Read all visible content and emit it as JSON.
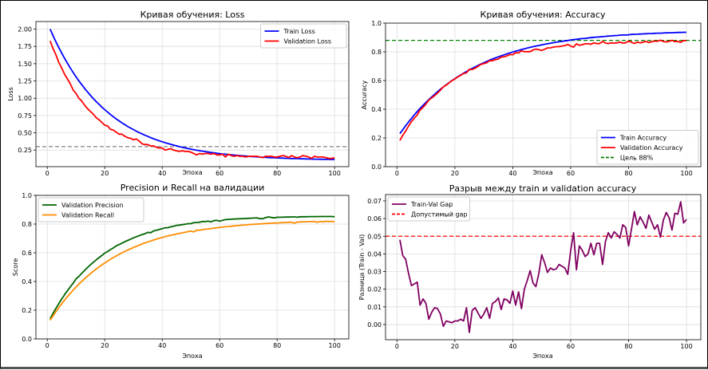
{
  "chart_data": [
    {
      "type": "line",
      "title": "Кривая обучения: Loss",
      "xlabel": "Эпоха",
      "ylabel": "Loss",
      "xlim": [
        -3.95,
        104.95
      ],
      "ylim": [
        0.01,
        2.11
      ],
      "xticks": [
        0,
        20,
        40,
        60,
        80,
        100
      ],
      "yticks": [
        "0.25",
        "0.50",
        "0.75",
        "1.00",
        "1.25",
        "1.50",
        "1.75",
        "2.00"
      ],
      "grid": true,
      "legend": "top-right",
      "hline": {
        "y": 0.3,
        "color": "#808080",
        "style": "dashed"
      },
      "series": [
        {
          "name": "Train Loss",
          "color": "#0000ff",
          "values": [
            2.0,
            1.907,
            1.819,
            1.735,
            1.656,
            1.58,
            1.508,
            1.439,
            1.374,
            1.311,
            1.252,
            1.196,
            1.143,
            1.092,
            1.043,
            0.997,
            0.954,
            0.912,
            0.872,
            0.835,
            0.799,
            0.765,
            0.732,
            0.701,
            0.672,
            0.644,
            0.618,
            0.592,
            0.568,
            0.546,
            0.524,
            0.503,
            0.484,
            0.465,
            0.447,
            0.43,
            0.414,
            0.399,
            0.384,
            0.37,
            0.357,
            0.345,
            0.333,
            0.321,
            0.311,
            0.3,
            0.29,
            0.281,
            0.272,
            0.264,
            0.256,
            0.248,
            0.241,
            0.234,
            0.228,
            0.221,
            0.215,
            0.21,
            0.204,
            0.199,
            0.194,
            0.19,
            0.185,
            0.181,
            0.177,
            0.174,
            0.17,
            0.167,
            0.163,
            0.16,
            0.157,
            0.154,
            0.152,
            0.149,
            0.147,
            0.145,
            0.142,
            0.14,
            0.138,
            0.137,
            0.135,
            0.133,
            0.131,
            0.13,
            0.128,
            0.127,
            0.126,
            0.124,
            0.123,
            0.122,
            0.121,
            0.12,
            0.119,
            0.118,
            0.117,
            0.116,
            0.115,
            0.115,
            0.114,
            0.113
          ]
        },
        {
          "name": "Validation Loss",
          "color": "#ff0000",
          "values": [
            1.83,
            1.72,
            1.63,
            1.52,
            1.44,
            1.35,
            1.28,
            1.21,
            1.12,
            1.07,
            1.0,
            0.96,
            0.9,
            0.85,
            0.81,
            0.77,
            0.72,
            0.69,
            0.65,
            0.61,
            0.6,
            0.55,
            0.54,
            0.51,
            0.48,
            0.48,
            0.45,
            0.43,
            0.42,
            0.4,
            0.41,
            0.38,
            0.34,
            0.33,
            0.33,
            0.31,
            0.31,
            0.29,
            0.28,
            0.28,
            0.25,
            0.26,
            0.27,
            0.25,
            0.24,
            0.23,
            0.24,
            0.23,
            0.23,
            0.22,
            0.2,
            0.18,
            0.2,
            0.19,
            0.2,
            0.2,
            0.19,
            0.2,
            0.18,
            0.18,
            0.19,
            0.15,
            0.19,
            0.17,
            0.16,
            0.17,
            0.16,
            0.16,
            0.15,
            0.16,
            0.16,
            0.16,
            0.16,
            0.15,
            0.14,
            0.16,
            0.16,
            0.16,
            0.15,
            0.15,
            0.16,
            0.17,
            0.16,
            0.14,
            0.17,
            0.15,
            0.14,
            0.15,
            0.17,
            0.16,
            0.15,
            0.13,
            0.16,
            0.15,
            0.15,
            0.15,
            0.14,
            0.13,
            0.13,
            0.14
          ]
        }
      ]
    },
    {
      "type": "line",
      "title": "Кривая обучения: Accuracy",
      "xlabel": "Эпоха",
      "ylabel": "Accuracy",
      "xlim": [
        -3.95,
        104.95
      ],
      "ylim": [
        0.0,
        1.0
      ],
      "xticks": [
        0,
        20,
        40,
        60,
        80,
        100
      ],
      "yticks": [
        "0.0",
        "0.2",
        "0.4",
        "0.6",
        "0.8",
        "1.0"
      ],
      "grid": true,
      "legend": "bottom-right",
      "hline": {
        "y": 0.88,
        "color": "#008000",
        "style": "dashed",
        "name": "Цель 88%"
      },
      "series": [
        {
          "name": "Train Accuracy",
          "color": "#0000ff",
          "values": [
            0.23,
            0.258,
            0.285,
            0.311,
            0.336,
            0.361,
            0.384,
            0.406,
            0.427,
            0.448,
            0.467,
            0.486,
            0.504,
            0.522,
            0.539,
            0.555,
            0.57,
            0.585,
            0.6,
            0.613,
            0.627,
            0.639,
            0.651,
            0.663,
            0.674,
            0.685,
            0.695,
            0.705,
            0.715,
            0.724,
            0.733,
            0.742,
            0.75,
            0.758,
            0.765,
            0.772,
            0.779,
            0.786,
            0.793,
            0.799,
            0.805,
            0.81,
            0.816,
            0.821,
            0.826,
            0.831,
            0.836,
            0.84,
            0.844,
            0.849,
            0.853,
            0.856,
            0.86,
            0.864,
            0.867,
            0.87,
            0.873,
            0.876,
            0.879,
            0.882,
            0.885,
            0.887,
            0.89,
            0.892,
            0.894,
            0.896,
            0.899,
            0.901,
            0.903,
            0.904,
            0.906,
            0.908,
            0.91,
            0.911,
            0.913,
            0.914,
            0.916,
            0.917,
            0.918,
            0.919,
            0.921,
            0.922,
            0.923,
            0.924,
            0.925,
            0.926,
            0.927,
            0.928,
            0.929,
            0.93,
            0.93,
            0.931,
            0.932,
            0.933,
            0.933,
            0.934,
            0.935,
            0.935,
            0.936,
            0.936
          ]
        },
        {
          "name": "Validation Accuracy",
          "color": "#ff0000",
          "values": [
            0.182,
            0.219,
            0.248,
            0.282,
            0.314,
            0.338,
            0.36,
            0.395,
            0.413,
            0.436,
            0.464,
            0.479,
            0.495,
            0.513,
            0.533,
            0.556,
            0.568,
            0.584,
            0.599,
            0.611,
            0.625,
            0.636,
            0.649,
            0.654,
            0.679,
            0.677,
            0.686,
            0.699,
            0.712,
            0.718,
            0.724,
            0.739,
            0.738,
            0.745,
            0.75,
            0.764,
            0.765,
            0.772,
            0.781,
            0.78,
            0.794,
            0.792,
            0.807,
            0.801,
            0.801,
            0.801,
            0.813,
            0.819,
            0.815,
            0.81,
            0.818,
            0.827,
            0.828,
            0.833,
            0.836,
            0.836,
            0.84,
            0.844,
            0.851,
            0.84,
            0.833,
            0.856,
            0.846,
            0.85,
            0.856,
            0.856,
            0.853,
            0.862,
            0.857,
            0.858,
            0.872,
            0.861,
            0.858,
            0.862,
            0.861,
            0.863,
            0.867,
            0.861,
            0.863,
            0.875,
            0.867,
            0.858,
            0.867,
            0.863,
            0.867,
            0.872,
            0.865,
            0.87,
            0.875,
            0.874,
            0.881,
            0.872,
            0.869,
            0.873,
            0.88,
            0.871,
            0.873,
            0.866,
            0.879,
            0.877
          ]
        }
      ]
    },
    {
      "type": "line",
      "title": "Precision и Recall на валидации",
      "xlabel": "Эпоха",
      "ylabel": "Score",
      "xlim": [
        -3.95,
        104.95
      ],
      "ylim": [
        0.0,
        1.0
      ],
      "xticks": [
        0,
        20,
        40,
        60,
        80,
        100
      ],
      "yticks": [
        "0.0",
        "0.2",
        "0.4",
        "0.6",
        "0.8",
        "1.0"
      ],
      "grid": true,
      "legend": "top-left",
      "series": [
        {
          "name": "Validation Precision",
          "color": "#006400",
          "values": [
            0.14,
            0.177,
            0.212,
            0.245,
            0.277,
            0.307,
            0.335,
            0.362,
            0.388,
            0.418,
            0.435,
            0.457,
            0.477,
            0.497,
            0.516,
            0.533,
            0.55,
            0.566,
            0.581,
            0.598,
            0.609,
            0.622,
            0.634,
            0.648,
            0.657,
            0.667,
            0.677,
            0.686,
            0.695,
            0.704,
            0.712,
            0.719,
            0.727,
            0.733,
            0.742,
            0.74,
            0.752,
            0.757,
            0.763,
            0.768,
            0.774,
            0.775,
            0.781,
            0.785,
            0.791,
            0.793,
            0.796,
            0.799,
            0.803,
            0.803,
            0.81,
            0.811,
            0.813,
            0.818,
            0.818,
            0.82,
            0.816,
            0.824,
            0.826,
            0.82,
            0.826,
            0.831,
            0.832,
            0.834,
            0.835,
            0.836,
            0.837,
            0.838,
            0.839,
            0.84,
            0.841,
            0.842,
            0.843,
            0.838,
            0.837,
            0.845,
            0.85,
            0.846,
            0.843,
            0.847,
            0.848,
            0.848,
            0.849,
            0.849,
            0.85,
            0.85,
            0.848,
            0.851,
            0.851,
            0.851,
            0.852,
            0.852,
            0.852,
            0.852,
            0.853,
            0.853,
            0.853,
            0.853,
            0.853,
            0.851
          ]
        },
        {
          "name": "Validation Recall",
          "color": "#ff8c00",
          "values": [
            0.13,
            0.16,
            0.19,
            0.217,
            0.244,
            0.27,
            0.294,
            0.317,
            0.34,
            0.361,
            0.381,
            0.401,
            0.419,
            0.437,
            0.454,
            0.471,
            0.486,
            0.501,
            0.515,
            0.529,
            0.542,
            0.555,
            0.567,
            0.578,
            0.589,
            0.6,
            0.61,
            0.619,
            0.628,
            0.637,
            0.645,
            0.654,
            0.661,
            0.669,
            0.676,
            0.682,
            0.689,
            0.695,
            0.701,
            0.706,
            0.712,
            0.717,
            0.722,
            0.726,
            0.731,
            0.735,
            0.739,
            0.743,
            0.747,
            0.751,
            0.745,
            0.757,
            0.757,
            0.761,
            0.764,
            0.766,
            0.769,
            0.772,
            0.774,
            0.777,
            0.779,
            0.781,
            0.783,
            0.785,
            0.787,
            0.789,
            0.791,
            0.793,
            0.794,
            0.796,
            0.797,
            0.799,
            0.8,
            0.801,
            0.803,
            0.804,
            0.805,
            0.806,
            0.807,
            0.808,
            0.809,
            0.81,
            0.811,
            0.812,
            0.813,
            0.806,
            0.814,
            0.815,
            0.816,
            0.816,
            0.817,
            0.817,
            0.818,
            0.812,
            0.819,
            0.815,
            0.82,
            0.818,
            0.819,
            0.816
          ]
        }
      ]
    },
    {
      "type": "line",
      "title": "Разрыв между train и validation accuracy",
      "xlabel": "Эпоха",
      "ylabel": "Разница (Train - Val)",
      "xlim": [
        -3.95,
        104.95
      ],
      "ylim": [
        -0.0086,
        0.0736
      ],
      "xticks": [
        0,
        20,
        40,
        60,
        80,
        100
      ],
      "yticks": [
        "0.00",
        "0.01",
        "0.02",
        "0.03",
        "0.04",
        "0.05",
        "0.06",
        "0.07"
      ],
      "grid": true,
      "legend": "top-left",
      "hline": {
        "y": 0.05,
        "color": "#ff0000",
        "style": "dashed",
        "name": "Допустимый gap"
      },
      "series": [
        {
          "name": "Train-Val Gap",
          "color": "#800060",
          "values": [
            0.048,
            0.039,
            0.037,
            0.029,
            0.022,
            0.023,
            0.024,
            0.011,
            0.0145,
            0.012,
            0.003,
            0.007,
            0.0095,
            0.009,
            0.006,
            -0.001,
            0.002,
            0.0015,
            0.001,
            0.002,
            0.002,
            0.003,
            0.002,
            0.0095,
            -0.0045,
            0.008,
            0.0095,
            0.0065,
            0.0035,
            0.006,
            0.0095,
            0.0035,
            0.012,
            0.013,
            0.015,
            0.0085,
            0.0145,
            0.014,
            0.012,
            0.019,
            0.011,
            0.0185,
            0.009,
            0.02,
            0.025,
            0.0305,
            0.0235,
            0.0215,
            0.029,
            0.0395,
            0.035,
            0.0295,
            0.032,
            0.031,
            0.0315,
            0.034,
            0.033,
            0.032,
            0.0285,
            0.042,
            0.052,
            0.031,
            0.0445,
            0.042,
            0.0385,
            0.04,
            0.046,
            0.0395,
            0.046,
            0.046,
            0.034,
            0.047,
            0.052,
            0.049,
            0.0525,
            0.051,
            0.049,
            0.0565,
            0.055,
            0.0445,
            0.054,
            0.064,
            0.0565,
            0.061,
            0.058,
            0.0545,
            0.062,
            0.058,
            0.054,
            0.0565,
            0.0495,
            0.059,
            0.0635,
            0.0605,
            0.0535,
            0.063,
            0.0625,
            0.0695,
            0.0575,
            0.0595
          ]
        }
      ]
    }
  ]
}
